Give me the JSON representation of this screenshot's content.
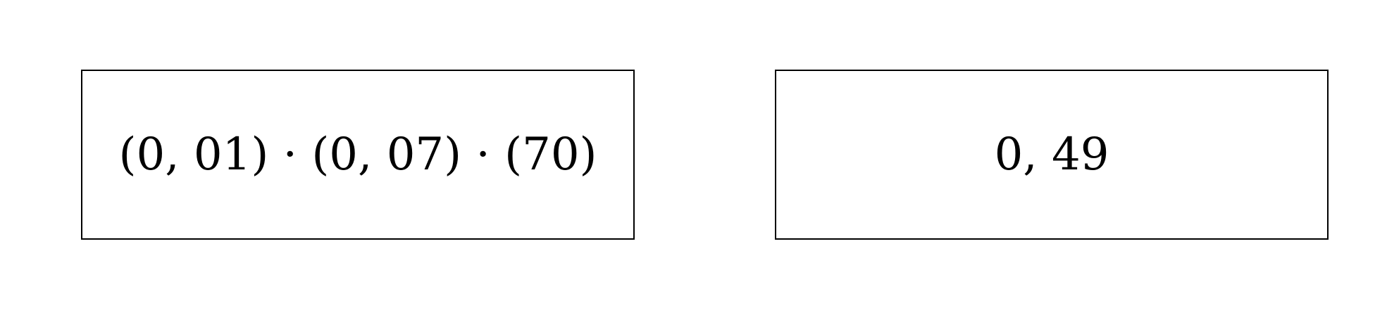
{
  "cards": {
    "left": {
      "expression": "(0, 01) · (0, 07) · (70)"
    },
    "right": {
      "expression": "0, 49"
    }
  }
}
